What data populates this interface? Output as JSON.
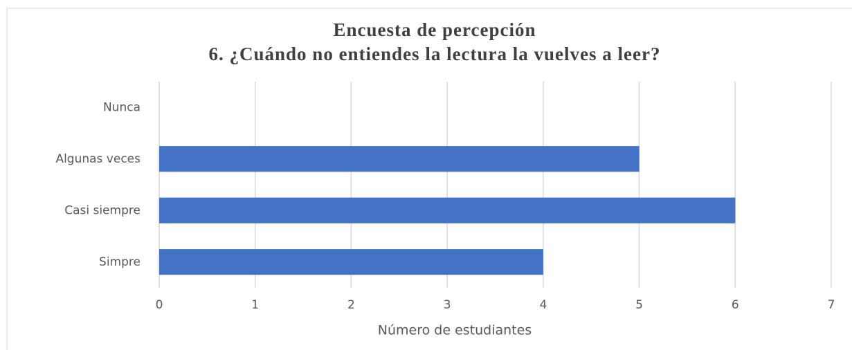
{
  "chart_data": {
    "type": "hbar",
    "title": "Encuesta de percepción",
    "subtitle": "6. ¿Cuándo no entiendes la lectura la vuelves a leer?",
    "categories": [
      "Nunca",
      "Algunas veces",
      "Casi siempre",
      "Simpre"
    ],
    "values": [
      0,
      5,
      6,
      4
    ],
    "color": "#4472c4",
    "xlabel": "Número de estudiantes",
    "xlim": [
      0,
      7
    ],
    "xticks": [
      0,
      1,
      2,
      3,
      4,
      5,
      6,
      7
    ],
    "grid": true
  }
}
